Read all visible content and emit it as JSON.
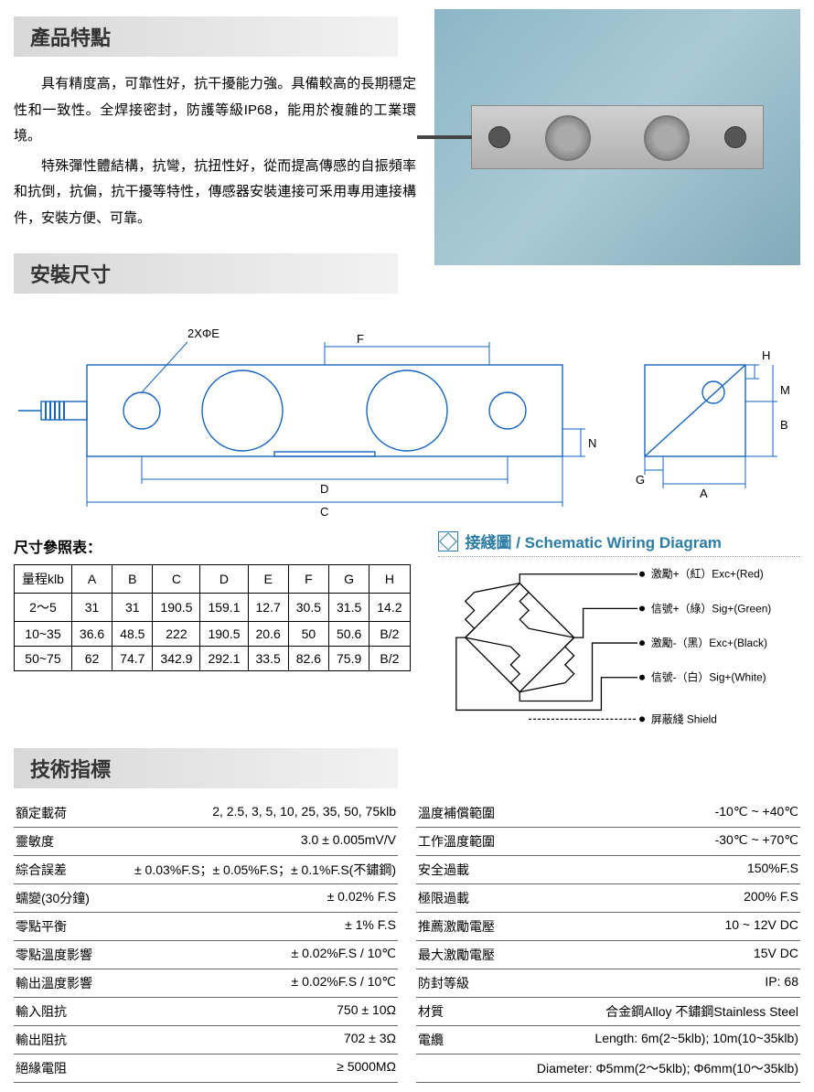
{
  "sections": {
    "features_title": "產品特點",
    "dimensions_title": "安裝尺寸",
    "specs_title": "技術指標"
  },
  "features": {
    "p1": "具有精度高，可靠性好，抗干擾能力強。具備較高的長期穩定性和一致性。全焊接密封，防護等級IP68，能用於複雜的工業環境。",
    "p2": "特殊彈性體結構，抗彎，抗扭性好，從而提高傳感的自振頻率和抗倒，抗偏，抗干擾等特性，傳感器安裝連接可釆用專用連接構件，安裝方便、可靠。"
  },
  "dim_table": {
    "caption": "尺寸參照表：",
    "headers": [
      "量程klb",
      "A",
      "B",
      "C",
      "D",
      "E",
      "F",
      "G",
      "H"
    ],
    "rows": [
      [
        "2～5",
        "31",
        "31",
        "190.5",
        "159.1",
        "12.7",
        "30.5",
        "31.5",
        "14.2"
      ],
      [
        "10~35",
        "36.6",
        "48.5",
        "222",
        "190.5",
        "20.6",
        "50",
        "50.6",
        "B/2"
      ],
      [
        "50~75",
        "62",
        "74.7",
        "342.9",
        "292.1",
        "33.5",
        "82.6",
        "75.9",
        "B/2"
      ]
    ]
  },
  "dim_labels": {
    "twoE": "2XΦE",
    "F": "F",
    "D": "D",
    "C": "C",
    "N": "N",
    "H": "H",
    "M": "M",
    "B": "B",
    "G": "G",
    "A": "A"
  },
  "wiring": {
    "title": "接綫圖 / Schematic Wiring Diagram",
    "lines": [
      {
        "label": "激勵+（紅）Exc+(Red)",
        "color": "#c62828"
      },
      {
        "label": "信號+（綠）Sig+(Green)",
        "color": "#2e7d32"
      },
      {
        "label": "激勵-（黑）Exc+(Black)",
        "color": "#000000"
      },
      {
        "label": "信號-（白）Sig+(White)",
        "color": "#888888"
      },
      {
        "label": "屏蔽綫  Shield",
        "color": "#555555"
      }
    ]
  },
  "specs_left": [
    {
      "k": "額定載荷",
      "v": "2, 2.5, 3, 5, 10, 25, 35, 50, 75klb"
    },
    {
      "k": "靈敏度",
      "v": "3.0 ± 0.005mV/V"
    },
    {
      "k": "綜合誤差",
      "v": "± 0.03%F.S；± 0.05%F.S；± 0.1%F.S(不鏽鋼)"
    },
    {
      "k": "蠕變(30分鐘)",
      "v": "± 0.02% F.S"
    },
    {
      "k": "零點平衡",
      "v": "± 1% F.S"
    },
    {
      "k": "零點溫度影響",
      "v": "± 0.02%F.S / 10℃"
    },
    {
      "k": "輸出溫度影響",
      "v": "± 0.02%F.S / 10℃"
    },
    {
      "k": "輸入阻抗",
      "v": "750 ± 10Ω"
    },
    {
      "k": "輸出阻抗",
      "v": "702 ± 3Ω"
    },
    {
      "k": "絕緣電阻",
      "v": "≥ 5000MΩ"
    }
  ],
  "specs_right": [
    {
      "k": "溫度補償範圍",
      "v": "-10℃ ~  +40℃"
    },
    {
      "k": "工作溫度範圍",
      "v": "-30℃ ~ +70℃"
    },
    {
      "k": "安全過載",
      "v": "150%F.S"
    },
    {
      "k": "極限過載",
      "v": "200% F.S"
    },
    {
      "k": "推薦激勵電壓",
      "v": "10 ~ 12V DC"
    },
    {
      "k": "最大激勵電壓",
      "v": "15V DC"
    },
    {
      "k": "防封等級",
      "v": "IP: 68"
    },
    {
      "k": "材質",
      "v": "合金鋼Alloy 不鏽鋼Stainless Steel"
    },
    {
      "k": "電纜",
      "v": "Length: 6m(2~5klb); 10m(10~35klb)"
    },
    {
      "k": "",
      "v": "Diameter: Φ5mm(2～5klb); Φ6mm(10～35klb)"
    }
  ],
  "colors": {
    "header_bg_start": "#d8d8d8",
    "header_bg_end": "#f2f2f2",
    "wiring_accent": "#2c7da6",
    "drawing_stroke": "#1565c0"
  }
}
